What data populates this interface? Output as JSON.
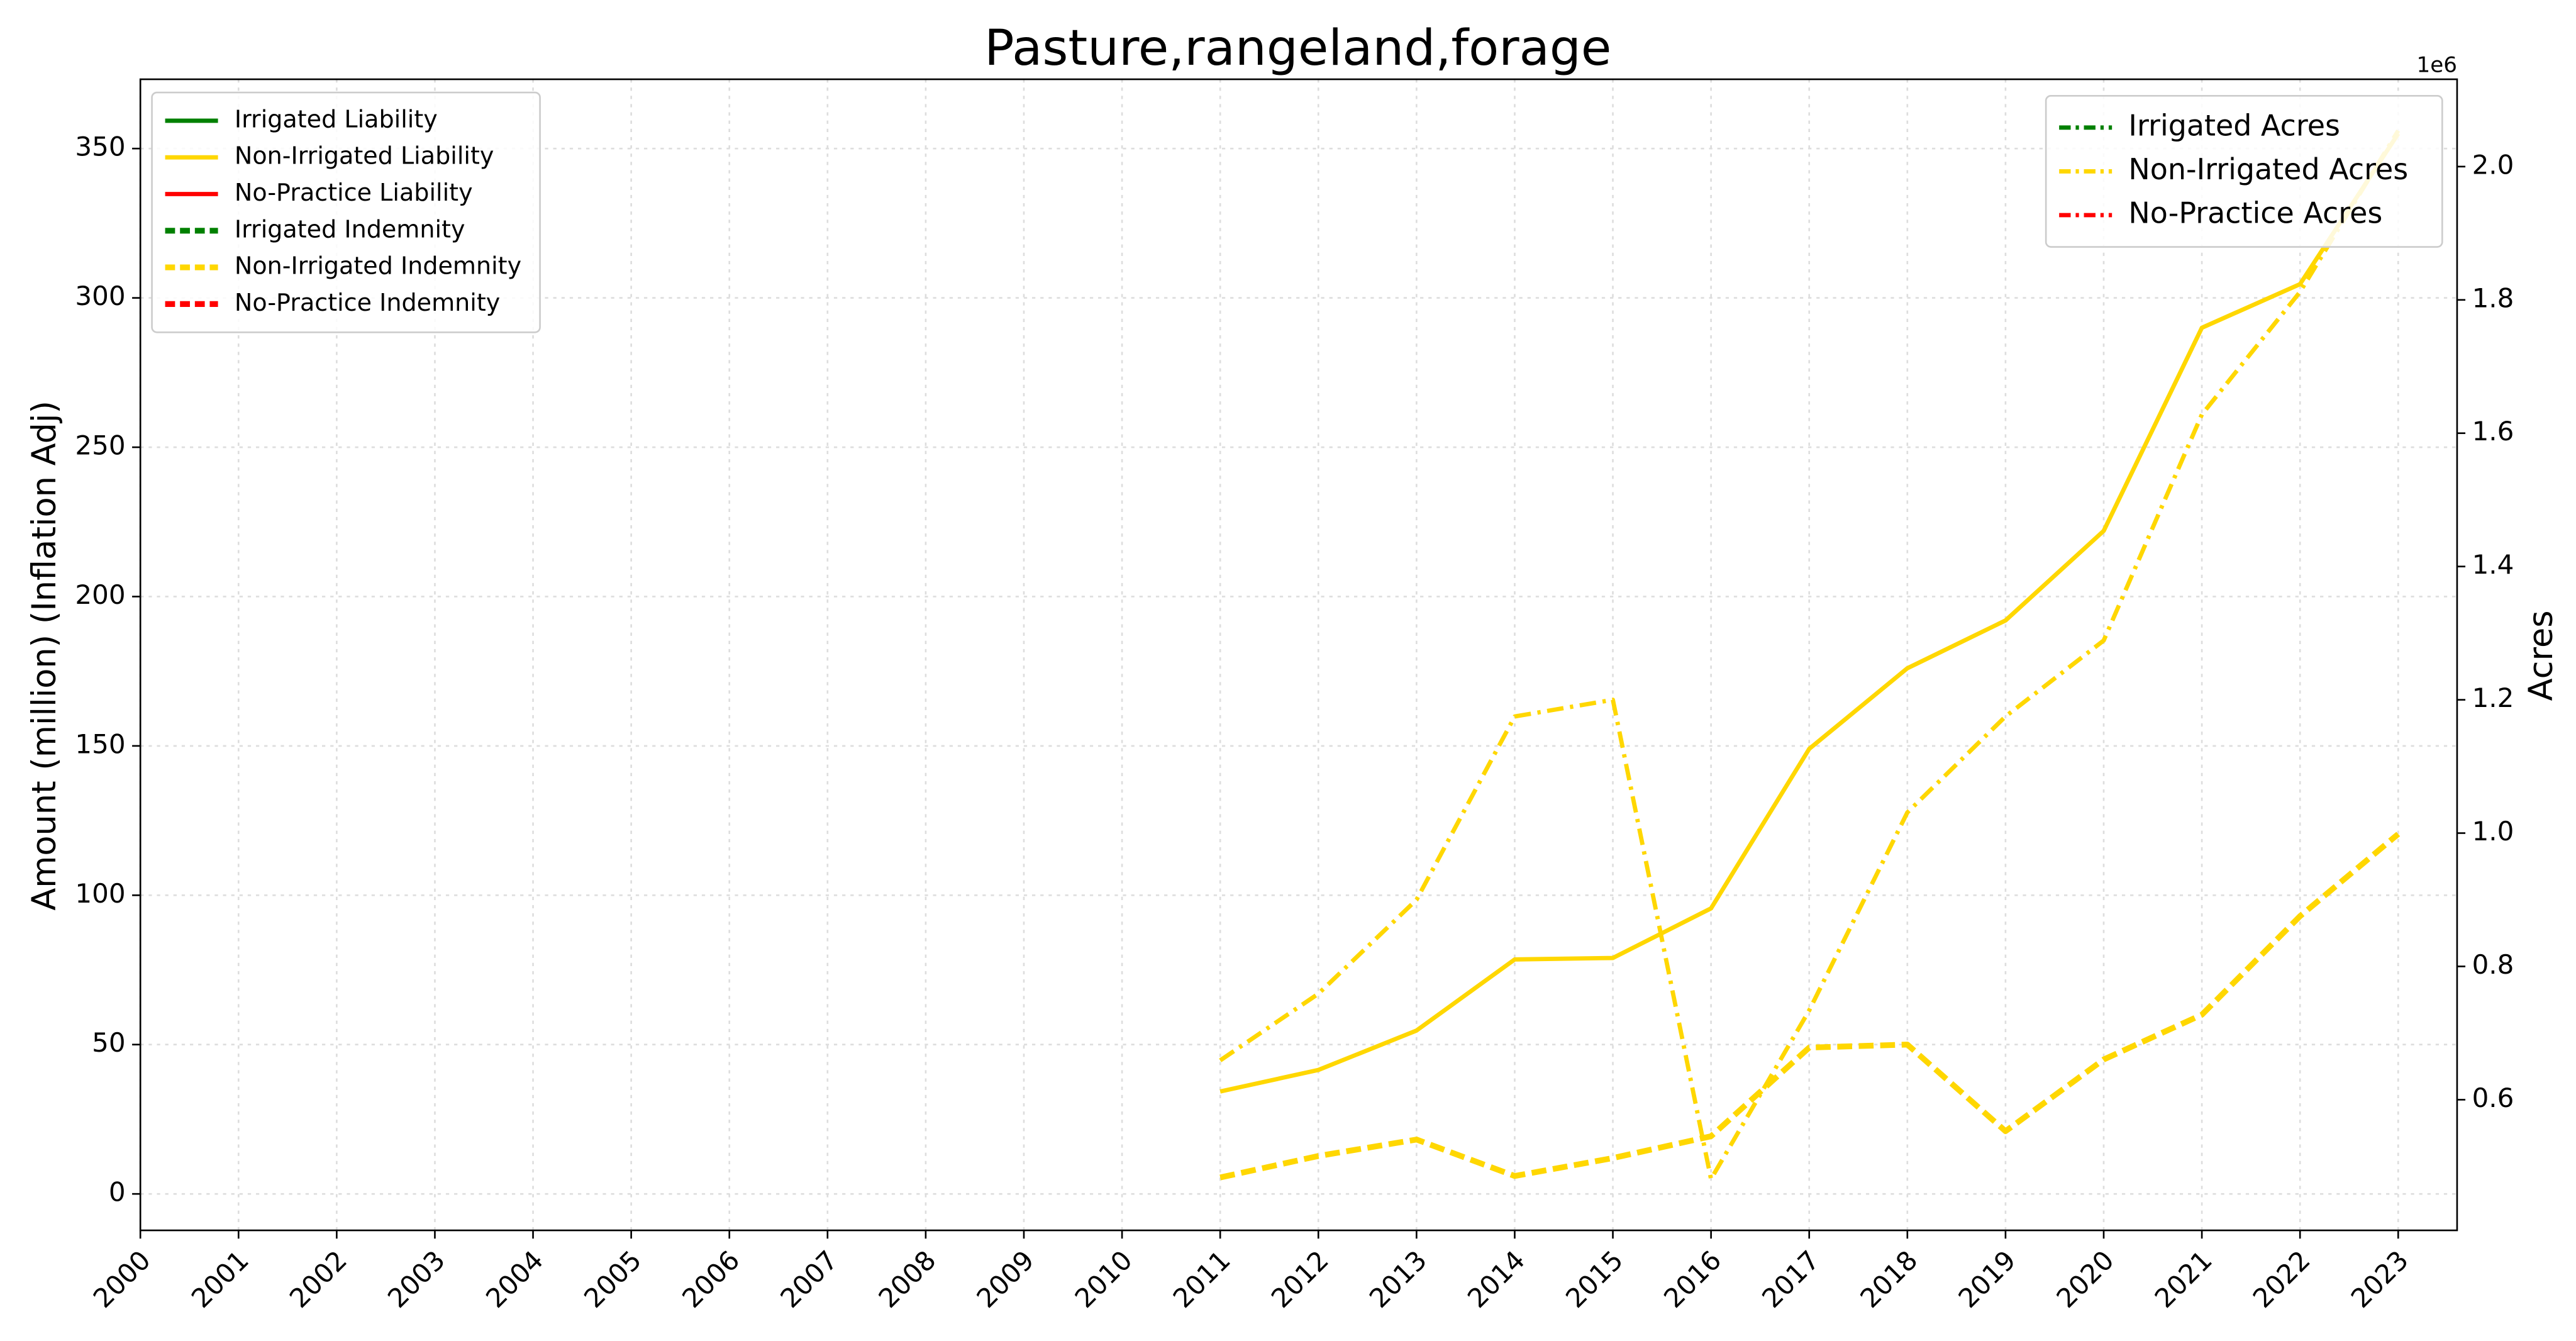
{
  "chart_data": {
    "type": "line",
    "title": "Pasture,rangeland,forage",
    "y_label": "Amount (million) (Inflation Adj)",
    "y2_label": "Acres",
    "y2_offset_label": "1e6",
    "x": [
      2000,
      2001,
      2002,
      2003,
      2004,
      2005,
      2006,
      2007,
      2008,
      2009,
      2010,
      2011,
      2012,
      2013,
      2014,
      2015,
      2016,
      2017,
      2018,
      2019,
      2020,
      2021,
      2022,
      2023
    ],
    "xlim": [
      2000,
      2023.6
    ],
    "xticks": [
      2000,
      2001,
      2002,
      2003,
      2004,
      2005,
      2006,
      2007,
      2008,
      2009,
      2010,
      2011,
      2012,
      2013,
      2014,
      2015,
      2016,
      2017,
      2018,
      2019,
      2020,
      2021,
      2022,
      2023
    ],
    "ylim": [
      -12.2,
      373.2
    ],
    "yticks": [
      0,
      50,
      100,
      150,
      200,
      250,
      300,
      350
    ],
    "y2lim": [
      404000,
      2131000
    ],
    "y2ticks": [
      {
        "value": 600000,
        "label": "0.6"
      },
      {
        "value": 800000,
        "label": "0.8"
      },
      {
        "value": 1000000,
        "label": "1.0"
      },
      {
        "value": 1200000,
        "label": "1.2"
      },
      {
        "value": 1400000,
        "label": "1.4"
      },
      {
        "value": 1600000,
        "label": "1.6"
      },
      {
        "value": 1800000,
        "label": "1.8"
      },
      {
        "value": 2000000,
        "label": "2.0"
      }
    ],
    "grid": true,
    "legend": "upper left",
    "legend2": "upper right",
    "series": [
      {
        "name": "Irrigated Liability",
        "color": "#008000",
        "linestyle": "solid",
        "values": [
          null,
          null,
          null,
          null,
          null,
          null,
          null,
          null,
          null,
          null,
          null,
          null,
          null,
          null,
          null,
          null,
          null,
          null,
          null,
          null,
          null,
          null,
          null,
          null
        ]
      },
      {
        "name": "Non-Irrigated Liability",
        "color": "#FFD700",
        "linestyle": "solid",
        "values": [
          null,
          null,
          null,
          null,
          null,
          null,
          null,
          null,
          null,
          null,
          null,
          34.3,
          41.5,
          54.7,
          78.5,
          79,
          95.6,
          149,
          176,
          192,
          222,
          290,
          304.6,
          355
        ]
      },
      {
        "name": "No-Practice Liability",
        "color": "#FF0000",
        "linestyle": "solid",
        "values": [
          null,
          null,
          null,
          null,
          null,
          null,
          null,
          null,
          null,
          null,
          null,
          null,
          null,
          null,
          null,
          null,
          null,
          null,
          null,
          null,
          null,
          null,
          null,
          null
        ]
      },
      {
        "name": "Irrigated Indemnity",
        "color": "#008000",
        "linestyle": "dashed",
        "values": [
          null,
          null,
          null,
          null,
          null,
          null,
          null,
          null,
          null,
          null,
          null,
          null,
          null,
          null,
          null,
          null,
          null,
          null,
          null,
          null,
          null,
          null,
          null,
          null
        ]
      },
      {
        "name": "Non-Irrigated Indemnity",
        "color": "#FFD700",
        "linestyle": "dashed",
        "values": [
          null,
          null,
          null,
          null,
          null,
          null,
          null,
          null,
          null,
          null,
          null,
          5.5,
          12.7,
          18.2,
          6,
          12,
          19.3,
          49,
          50,
          21,
          45,
          60,
          93,
          120.5
        ]
      },
      {
        "name": "No-Practice Indemnity",
        "color": "#FF0000",
        "linestyle": "dashed",
        "values": [
          null,
          null,
          null,
          null,
          null,
          null,
          null,
          null,
          null,
          null,
          null,
          null,
          null,
          null,
          null,
          null,
          null,
          null,
          null,
          null,
          null,
          null,
          null,
          null
        ]
      },
      {
        "name": "Irrigated Acres",
        "color": "#008000",
        "linestyle": "dashdot",
        "axis": "y2",
        "values": [
          null,
          null,
          null,
          null,
          null,
          null,
          null,
          null,
          null,
          null,
          null,
          null,
          null,
          null,
          null,
          null,
          null,
          null,
          null,
          null,
          null,
          null,
          null,
          null
        ]
      },
      {
        "name": "Non-Irrigated Acres",
        "color": "#FFD700",
        "linestyle": "dashdot",
        "axis": "y2",
        "values": [
          null,
          null,
          null,
          null,
          null,
          null,
          null,
          null,
          null,
          null,
          null,
          659000,
          759000,
          900000,
          1175000,
          1200000,
          481000,
          734000,
          1031000,
          1175000,
          1289000,
          1628000,
          1812000,
          2054000
        ]
      },
      {
        "name": "No-Practice Acres",
        "color": "#FF0000",
        "linestyle": "dashdot",
        "axis": "y2",
        "values": [
          null,
          null,
          null,
          null,
          null,
          null,
          null,
          null,
          null,
          null,
          null,
          null,
          null,
          null,
          null,
          null,
          null,
          null,
          null,
          null,
          null,
          null,
          null,
          null
        ]
      }
    ]
  }
}
